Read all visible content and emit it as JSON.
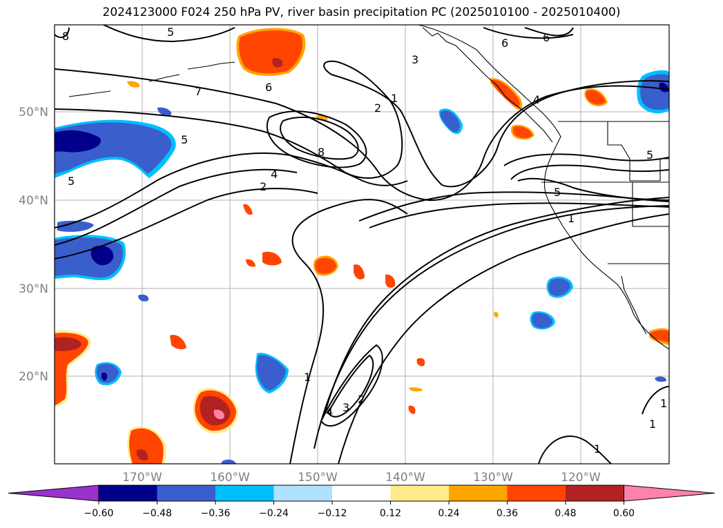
{
  "title": "2024123000 F024 250 hPa PV, river basin precipitation PC (2025010100 - 2025010400)",
  "latitude_labels": [
    "50°N",
    "40°N",
    "30°N",
    "20°N"
  ],
  "longitude_labels": [
    "170°W",
    "160°W",
    "150°W",
    "140°W",
    "130°W",
    "120°W"
  ],
  "contour_labels": [
    "8",
    "5",
    "6",
    "7",
    "5",
    "5",
    "3",
    "6",
    "6",
    "1",
    "2",
    "8",
    "4",
    "2",
    "4",
    "5",
    "5",
    "1",
    "1",
    "4",
    "3",
    "2",
    "1",
    "1",
    "1"
  ],
  "colorbar": {
    "ticks": [
      "−0.60",
      "−0.48",
      "−0.36",
      "−0.24",
      "−0.12",
      "0.12",
      "0.24",
      "0.36",
      "0.48",
      "0.60"
    ],
    "colors": [
      "#9932cc",
      "#00008b",
      "#3a5fcd",
      "#00bfff",
      "#b0e2ff",
      "#ffffff",
      "#ffec8b",
      "#ffa500",
      "#ff4500",
      "#b22222",
      "#ff82ab"
    ]
  },
  "chart_data": {
    "type": "heatmap",
    "title": "2024123000 F024 250 hPa PV, river basin precipitation PC (2025010100 - 2025010400)",
    "lon_range": [
      -180,
      -110
    ],
    "lat_range": [
      10,
      60
    ],
    "contour_field": "250 hPa PV",
    "fill_field": "river basin precipitation PC",
    "contour_levels": [
      1,
      2,
      3,
      4,
      5,
      6,
      7,
      8
    ],
    "colorbar_bounds": [
      -0.6,
      -0.48,
      -0.36,
      -0.24,
      -0.12,
      0.12,
      0.24,
      0.36,
      0.48,
      0.6
    ]
  }
}
